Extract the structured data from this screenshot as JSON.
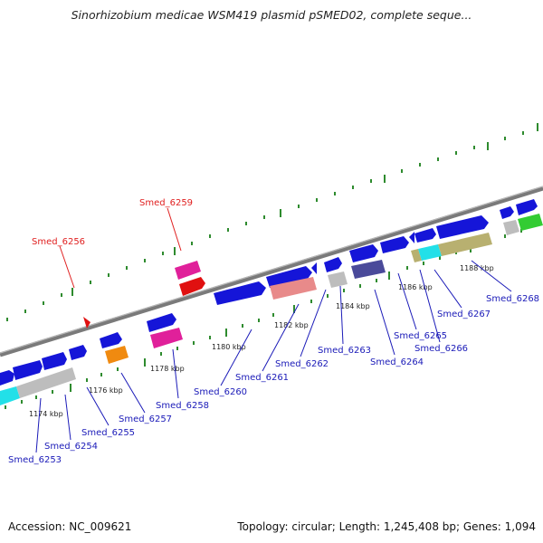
{
  "title": "Sinorhizobium medicae WSM419 plasmid pSMED02, complete seque...",
  "footer": {
    "accession": "Accession: NC_009621",
    "summary": "Topology: circular; Length: 1,245,408 bp; Genes: 1,094"
  },
  "colors": {
    "backbone": "#8a8a8a",
    "ticks": "#2e8b2e",
    "label_blue": "#1a1ab8",
    "label_red": "#e02020",
    "gene_blue": "#1515d8",
    "gene_magenta": "#e0209a",
    "gene_red": "#e01010",
    "gene_orange": "#f08a10",
    "gene_cyan": "#22e0e8",
    "gene_gray": "#bdbdbd",
    "gene_salmon": "#e88a8a",
    "gene_slate": "#4a4a9a",
    "gene_olive": "#b8b070",
    "gene_green": "#33cc33"
  },
  "kbp_labels": [
    "1174 kbp",
    "1176 kbp",
    "1178 kbp",
    "1180 kbp",
    "1182 kbp",
    "1184 kbp",
    "1186 kbp",
    "1188 kbp"
  ],
  "gene_labels": [
    {
      "name": "Smed_6253",
      "color": "blue"
    },
    {
      "name": "Smed_6254",
      "color": "blue"
    },
    {
      "name": "Smed_6255",
      "color": "blue"
    },
    {
      "name": "Smed_6256",
      "color": "red"
    },
    {
      "name": "Smed_6257",
      "color": "blue"
    },
    {
      "name": "Smed_6258",
      "color": "blue"
    },
    {
      "name": "Smed_6259",
      "color": "red"
    },
    {
      "name": "Smed_6260",
      "color": "blue"
    },
    {
      "name": "Smed_6261",
      "color": "blue"
    },
    {
      "name": "Smed_6262",
      "color": "blue"
    },
    {
      "name": "Smed_6263",
      "color": "blue"
    },
    {
      "name": "Smed_6264",
      "color": "blue"
    },
    {
      "name": "Smed_6265",
      "color": "blue"
    },
    {
      "name": "Smed_6266",
      "color": "blue"
    },
    {
      "name": "Smed_6267",
      "color": "blue"
    },
    {
      "name": "Smed_6268",
      "color": "blue"
    }
  ]
}
